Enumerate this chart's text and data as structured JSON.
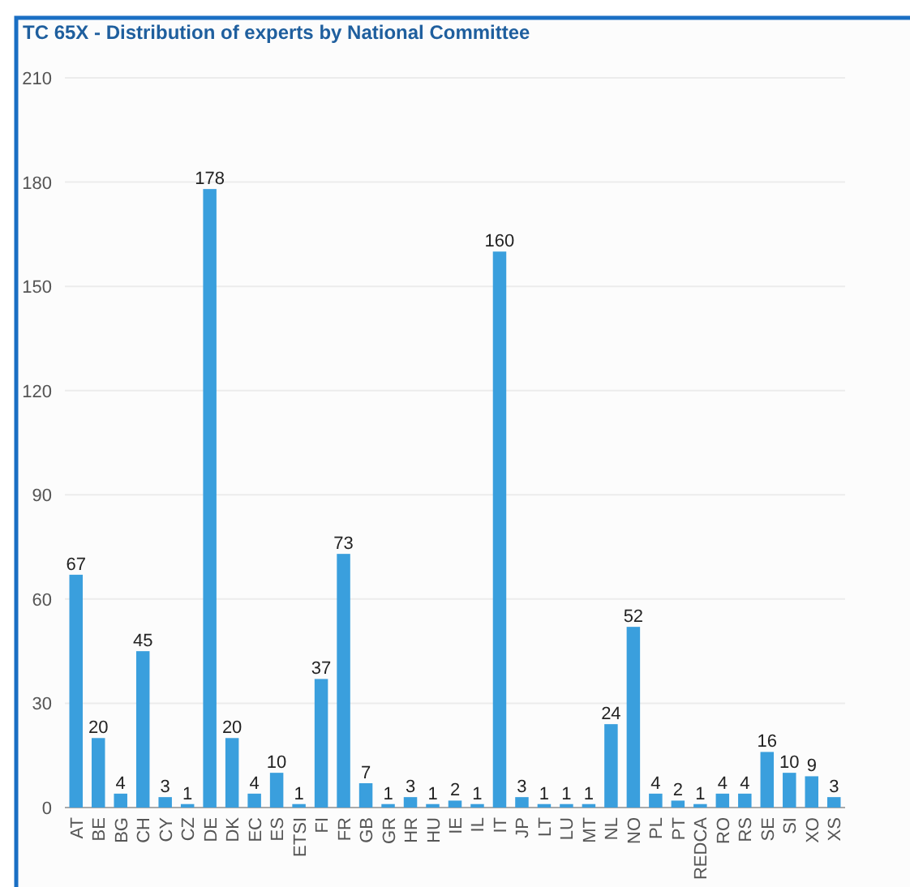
{
  "chart_data": {
    "type": "bar",
    "title": "TC 65X - Distribution of experts by National Committee",
    "categories": [
      "AT",
      "BE",
      "BG",
      "CH",
      "CY",
      "CZ",
      "DE",
      "DK",
      "EC",
      "ES",
      "ETSI",
      "FI",
      "FR",
      "GB",
      "GR",
      "HR",
      "HU",
      "IE",
      "IL",
      "IT",
      "JP",
      "LT",
      "LU",
      "MT",
      "NL",
      "NO",
      "PL",
      "PT",
      "REDCA",
      "RO",
      "RS",
      "SE",
      "SI",
      "XO",
      "XS"
    ],
    "values": [
      67,
      20,
      4,
      45,
      3,
      1,
      178,
      20,
      4,
      10,
      1,
      37,
      73,
      7,
      1,
      3,
      1,
      2,
      1,
      160,
      3,
      1,
      1,
      1,
      24,
      52,
      4,
      2,
      1,
      4,
      4,
      16,
      10,
      9,
      3
    ],
    "color": "#3a9fdd",
    "ylim": [
      0,
      210
    ],
    "yticks": [
      0,
      30,
      60,
      90,
      120,
      150,
      180,
      210
    ],
    "grid": "y",
    "data_labels": true
  }
}
